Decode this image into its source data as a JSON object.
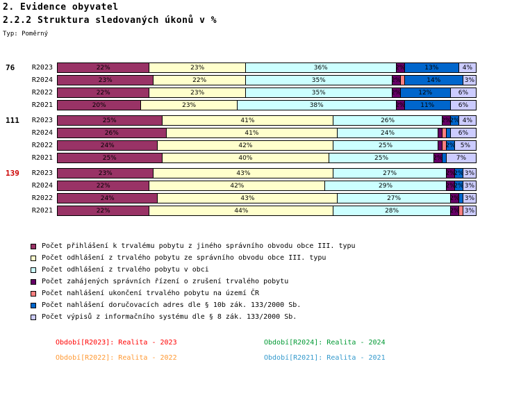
{
  "header": {
    "title": "2. Evidence obyvatel",
    "subtitle": "2.2.2 Struktura sledovaných úkonů v %",
    "type_label": "Typ: Poměrný"
  },
  "chart_data": {
    "type": "bar",
    "stacked": true,
    "orientation": "horizontal",
    "value_unit": "%",
    "xlim": [
      0,
      100
    ],
    "grid": false,
    "legend_position": "bottom-left",
    "series": [
      {
        "name": "Počet přihlášení k trvalému pobytu z jiného správního obvodu obce III. typu",
        "color": "#993366"
      },
      {
        "name": "Počet odhlášení z trvalého pobytu ze správního obvodu obce III. typu",
        "color": "#FFFFCC"
      },
      {
        "name": "Počet odhlášení z trvalého pobytu v obci",
        "color": "#CCFFFF"
      },
      {
        "name": "Počet zahájených správních řízení o zrušení trvalého pobytu",
        "color": "#660066"
      },
      {
        "name": "Počet nahlášení ukončení trvalého pobytu na území ČR",
        "color": "#FF8080"
      },
      {
        "name": "Počet nahlášení doručovacích adres dle § 10b zák. 133/2000 Sb.",
        "color": "#0066CC"
      },
      {
        "name": "Počet výpisů z informačního systému dle § 8 zák. 133/2000 Sb.",
        "color": "#CCCCFF"
      }
    ],
    "groups": [
      {
        "label": "76",
        "label_color": "#000000",
        "rows": [
          {
            "label": "R2023",
            "values": [
              22,
              23,
              36,
              2,
              0,
              13,
              4
            ]
          },
          {
            "label": "R2024",
            "values": [
              23,
              22,
              35,
              2,
              1,
              14,
              3
            ]
          },
          {
            "label": "R2022",
            "values": [
              22,
              23,
              35,
              2,
              0,
              12,
              6
            ]
          },
          {
            "label": "R2021",
            "values": [
              20,
              23,
              38,
              2,
              0,
              11,
              6
            ]
          }
        ]
      },
      {
        "label": "111",
        "label_color": "#000000",
        "rows": [
          {
            "label": "R2023",
            "values": [
              25,
              41,
              26,
              2,
              0,
              2,
              4
            ]
          },
          {
            "label": "R2024",
            "values": [
              26,
              41,
              24,
              1,
              1,
              1,
              6
            ]
          },
          {
            "label": "R2022",
            "values": [
              24,
              42,
              25,
              1,
              1,
              2,
              5
            ]
          },
          {
            "label": "R2021",
            "values": [
              25,
              40,
              25,
              2,
              0,
              1,
              7
            ]
          }
        ]
      },
      {
        "label": "139",
        "label_color": "#CC0000",
        "rows": [
          {
            "label": "R2023",
            "values": [
              23,
              43,
              27,
              2,
              0,
              2,
              3
            ]
          },
          {
            "label": "R2024",
            "values": [
              22,
              42,
              29,
              2,
              0,
              2,
              3
            ]
          },
          {
            "label": "R2022",
            "values": [
              24,
              43,
              27,
              2,
              0,
              1,
              3
            ]
          },
          {
            "label": "R2021",
            "values": [
              22,
              44,
              28,
              2,
              1,
              0,
              3
            ]
          }
        ]
      }
    ]
  },
  "footer": {
    "items": [
      {
        "text": "Období[R2023]: Realita - 2023",
        "color": "#FF0000"
      },
      {
        "text": "Období[R2024]: Realita - 2024",
        "color": "#009933"
      },
      {
        "text": "Období[R2022]: Realita - 2022",
        "color": "#FF9933"
      },
      {
        "text": "Období[R2021]: Realita - 2021",
        "color": "#3399CC"
      }
    ]
  }
}
